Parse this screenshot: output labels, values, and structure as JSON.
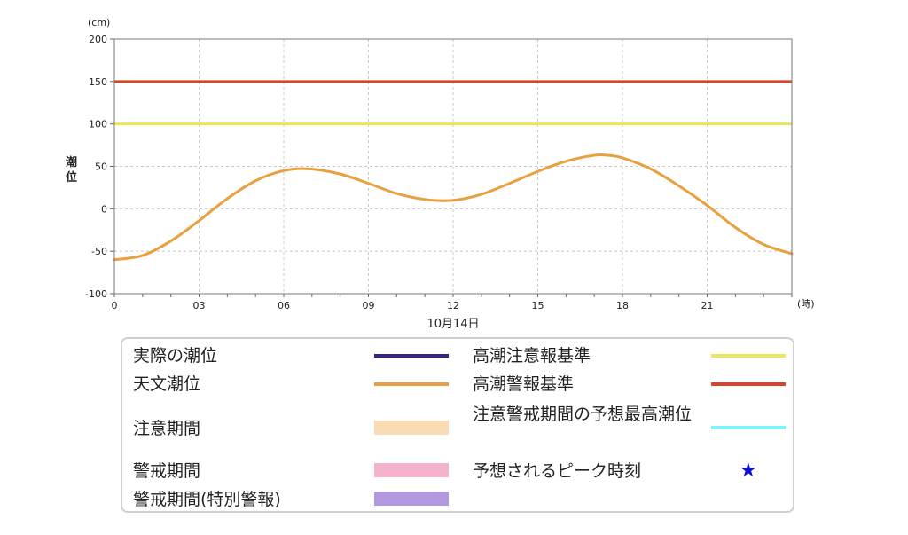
{
  "chart_data": {
    "type": "line",
    "ylabel": "潮位",
    "yunit": "(cm)",
    "xunit": "(時)",
    "xdate": "10月14日",
    "ylim": [
      -100,
      200
    ],
    "xlim": [
      0,
      24
    ],
    "yticks": [
      200,
      150,
      100,
      50,
      0,
      -50,
      -100
    ],
    "xticks": [
      "0",
      "03",
      "06",
      "09",
      "12",
      "15",
      "18",
      "21"
    ],
    "grid": true,
    "reference_lines": [
      {
        "name": "高潮警報基準",
        "value": 150,
        "color": "#d9442b"
      },
      {
        "name": "高潮注意報基準",
        "value": 100,
        "color": "#ece65a"
      }
    ],
    "series": [
      {
        "name": "天文潮位",
        "color": "#e8a040",
        "x": [
          0,
          1,
          2,
          3,
          4,
          5,
          6,
          6.9,
          8,
          9,
          10,
          11,
          12,
          13,
          14,
          15,
          16,
          17,
          17.5,
          18,
          19,
          20,
          21,
          22,
          23,
          24
        ],
        "y": [
          -60,
          -55,
          -38,
          -14,
          12,
          33,
          45,
          47,
          41,
          30,
          18,
          11,
          10,
          17,
          30,
          44,
          56,
          63,
          63,
          60,
          47,
          27,
          4,
          -22,
          -42,
          -53
        ]
      }
    ]
  },
  "legend": {
    "left": [
      {
        "label": "実際の潮位",
        "color": "#3a1f8f",
        "kind": "line"
      },
      {
        "label": "天文潮位",
        "color": "#e8a040",
        "kind": "line"
      },
      {
        "label": "注意期間",
        "color": "#f8dcb4",
        "kind": "rect"
      },
      {
        "label": "警戒期間",
        "color": "#f4b2cc",
        "kind": "rect"
      },
      {
        "label": "警戒期間(特別警報)",
        "color": "#b39ae0",
        "kind": "rect"
      }
    ],
    "right": [
      {
        "label": "高潮注意報基準",
        "color": "#ece65a",
        "kind": "line"
      },
      {
        "label": "高潮警報基準",
        "color": "#d9442b",
        "kind": "line"
      },
      {
        "label": "注意警戒期間の予想最高潮位",
        "color": "#7ff3f6",
        "kind": "line"
      },
      {
        "label": "予想されるピーク時刻",
        "color": "#1010d0",
        "kind": "star",
        "icon": "star-icon"
      }
    ]
  }
}
